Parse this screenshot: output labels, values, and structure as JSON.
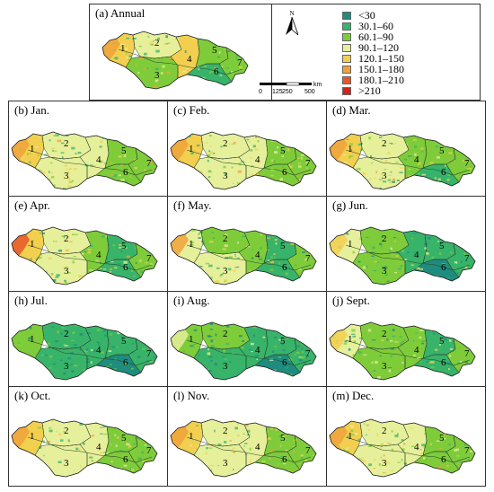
{
  "legend": {
    "north_label": "N",
    "scale_ticks": [
      "0",
      "125",
      "250",
      "500"
    ],
    "scale_unit": "km",
    "classes": [
      {
        "label": "<30",
        "color": "#1e8c7e"
      },
      {
        "label": "30.1–60",
        "color": "#38b36a"
      },
      {
        "label": "60.1–90",
        "color": "#7fcc3a"
      },
      {
        "label": "90.1–120",
        "color": "#e6ef9a"
      },
      {
        "label": "120.1–150",
        "color": "#f2cf4f"
      },
      {
        "label": "150.1–180",
        "color": "#f0a23a"
      },
      {
        "label": "180.1–210",
        "color": "#e8562a"
      },
      {
        "label": ">210",
        "color": "#d22418"
      }
    ]
  },
  "region_labels": [
    "1",
    "2",
    "3",
    "4",
    "5",
    "6",
    "7"
  ],
  "panels": [
    {
      "label": "(a) Annual",
      "palette": [
        "#f2cf4f",
        "#e6ef9a",
        "#7fcc3a",
        "#f2cf4f",
        "#7fcc3a",
        "#38b36a",
        "#7fcc3a"
      ],
      "west": "#f0a23a"
    },
    {
      "label": "(b) Jan.",
      "palette": [
        "#f2cf4f",
        "#e6ef9a",
        "#e6ef9a",
        "#e6ef9a",
        "#7fcc3a",
        "#7fcc3a",
        "#7fcc3a"
      ],
      "west": "#f0a23a"
    },
    {
      "label": "(c) Feb.",
      "palette": [
        "#f2cf4f",
        "#e6ef9a",
        "#e6ef9a",
        "#e6ef9a",
        "#7fcc3a",
        "#7fcc3a",
        "#7fcc3a"
      ],
      "west": "#f0a23a"
    },
    {
      "label": "(d) Mar.",
      "palette": [
        "#f2cf4f",
        "#e6ef9a",
        "#e6ef9a",
        "#7fcc3a",
        "#7fcc3a",
        "#38b36a",
        "#7fcc3a"
      ],
      "west": "#f0a23a"
    },
    {
      "label": "(e) Apr.",
      "palette": [
        "#f2cf4f",
        "#e6ef9a",
        "#e6ef9a",
        "#7fcc3a",
        "#38b36a",
        "#38b36a",
        "#7fcc3a"
      ],
      "west": "#e8562a"
    },
    {
      "label": "(f) May.",
      "palette": [
        "#e6ef9a",
        "#7fcc3a",
        "#e6ef9a",
        "#7fcc3a",
        "#38b36a",
        "#38b36a",
        "#7fcc3a"
      ],
      "west": "#f0a23a"
    },
    {
      "label": "(g) Jun.",
      "palette": [
        "#e6ef9a",
        "#7fcc3a",
        "#7fcc3a",
        "#38b36a",
        "#38b36a",
        "#1e8c7e",
        "#38b36a"
      ],
      "west": "#f2cf4f"
    },
    {
      "label": "(h) Jul.",
      "palette": [
        "#7fcc3a",
        "#38b36a",
        "#38b36a",
        "#38b36a",
        "#38b36a",
        "#1e8c7e",
        "#38b36a"
      ],
      "west": "#7fcc3a"
    },
    {
      "label": "(i) Aug.",
      "palette": [
        "#7fcc3a",
        "#7fcc3a",
        "#38b36a",
        "#38b36a",
        "#38b36a",
        "#1e8c7e",
        "#38b36a"
      ],
      "west": "#e6ef9a"
    },
    {
      "label": "(j) Sept.",
      "palette": [
        "#e6ef9a",
        "#7fcc3a",
        "#7fcc3a",
        "#7fcc3a",
        "#38b36a",
        "#38b36a",
        "#7fcc3a"
      ],
      "west": "#f2cf4f"
    },
    {
      "label": "(k) Oct.",
      "palette": [
        "#f2cf4f",
        "#e6ef9a",
        "#e6ef9a",
        "#e6ef9a",
        "#7fcc3a",
        "#7fcc3a",
        "#7fcc3a"
      ],
      "west": "#f0a23a"
    },
    {
      "label": "(l) Nov.",
      "palette": [
        "#f2cf4f",
        "#e6ef9a",
        "#e6ef9a",
        "#e6ef9a",
        "#7fcc3a",
        "#7fcc3a",
        "#7fcc3a"
      ],
      "west": "#f0a23a"
    },
    {
      "label": "(m) Dec.",
      "palette": [
        "#f2cf4f",
        "#e6ef9a",
        "#e6ef9a",
        "#e6ef9a",
        "#7fcc3a",
        "#7fcc3a",
        "#7fcc3a"
      ],
      "west": "#f0a23a"
    }
  ]
}
